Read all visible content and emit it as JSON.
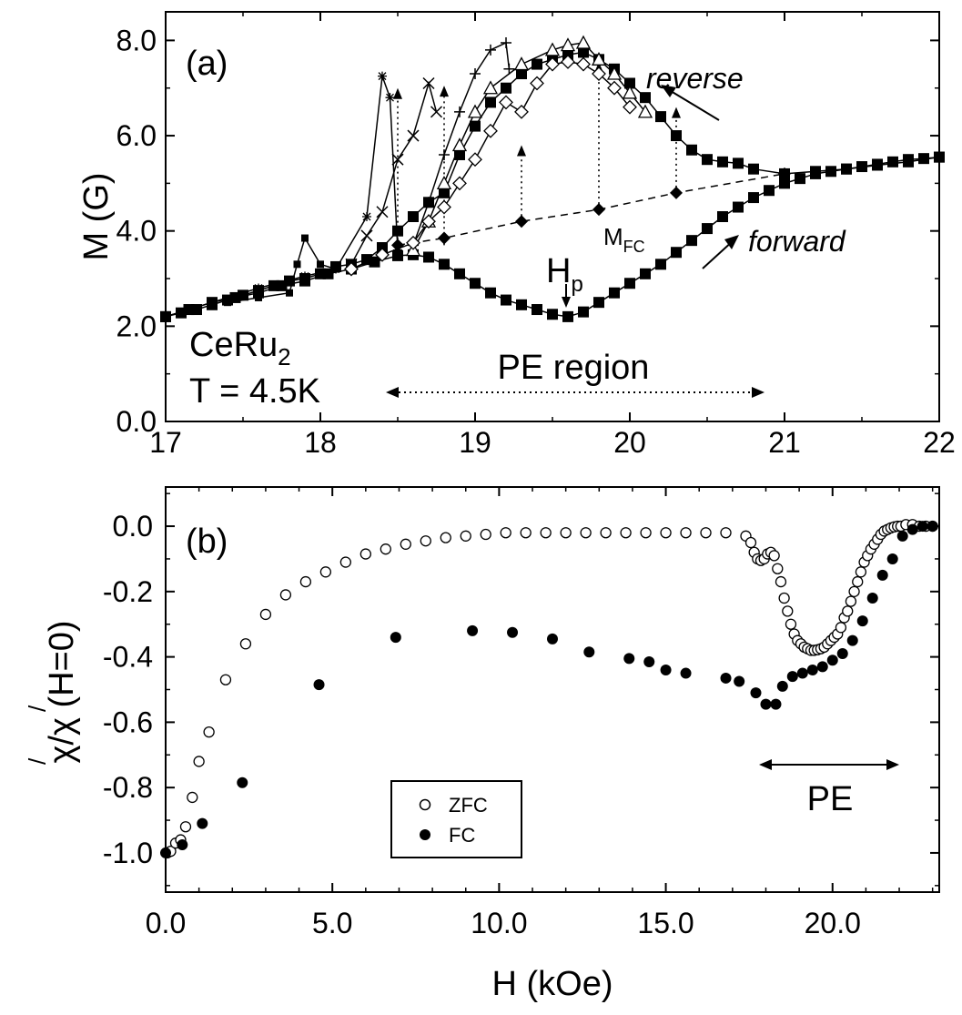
{
  "chart_data": [
    {
      "panel": "(a)",
      "type": "line",
      "xlim": [
        17,
        22
      ],
      "ylim": [
        0,
        8.6
      ],
      "xticks": [
        17,
        18,
        19,
        20,
        21,
        22
      ],
      "xtick_labels": [
        "17",
        "18",
        "19",
        "20",
        "21",
        "22"
      ],
      "yticks": [
        0,
        2,
        4,
        6,
        8
      ],
      "ytick_labels": [
        "0.0",
        "2.0",
        "4.0",
        "6.0",
        "8.0"
      ],
      "xlabel": "",
      "ylabel": "M (G)",
      "annotations": {
        "sample": "CeRu",
        "sample_sub": "2",
        "temperature": "T = 4.5K",
        "region": "PE region",
        "reverse": "reverse",
        "forward": "forward",
        "hp": "H",
        "hp_sub": "p",
        "mfc": "M",
        "mfc_sub": "FC"
      },
      "series": [
        {
          "role": "forward",
          "marker": "square",
          "x": [
            17.0,
            17.15,
            17.3,
            17.45,
            17.6,
            17.75,
            17.9,
            18.05,
            18.2,
            18.35,
            18.5,
            18.6,
            18.7,
            18.8,
            18.9,
            19.0,
            19.1,
            19.2,
            19.3,
            19.4,
            19.5,
            19.6,
            19.7,
            19.8,
            19.9,
            20.0,
            20.1,
            20.2,
            20.3,
            20.4,
            20.5,
            20.6,
            20.7,
            20.8,
            20.9,
            21.0,
            21.1,
            21.2,
            21.3,
            21.4,
            21.5,
            21.6,
            21.7,
            21.8,
            21.9,
            22.0
          ],
          "y": [
            2.2,
            2.35,
            2.5,
            2.6,
            2.7,
            2.85,
            2.95,
            3.1,
            3.2,
            3.35,
            3.48,
            3.5,
            3.45,
            3.3,
            3.1,
            2.9,
            2.7,
            2.55,
            2.45,
            2.35,
            2.25,
            2.2,
            2.3,
            2.5,
            2.7,
            2.9,
            3.1,
            3.3,
            3.55,
            3.8,
            4.05,
            4.3,
            4.5,
            4.7,
            4.85,
            5.0,
            5.1,
            5.2,
            5.25,
            5.3,
            5.35,
            5.4,
            5.45,
            5.5,
            5.52,
            5.55
          ]
        },
        {
          "role": "reverse",
          "marker": "square",
          "x": [
            22.0,
            21.8,
            21.6,
            21.4,
            21.2,
            21.0,
            20.8,
            20.7,
            20.6,
            20.5,
            20.4,
            20.3,
            20.2,
            20.1,
            20.0,
            19.9,
            19.8,
            19.7,
            19.6,
            19.5,
            19.4,
            19.3,
            19.2,
            19.1,
            19.0,
            18.9,
            18.8,
            18.7,
            18.6,
            18.5,
            18.4,
            18.3,
            18.2,
            18.1,
            18.0,
            17.9,
            17.8,
            17.7,
            17.6,
            17.5,
            17.4,
            17.3,
            17.2,
            17.1,
            17.0
          ],
          "y": [
            5.55,
            5.45,
            5.38,
            5.3,
            5.25,
            5.2,
            5.3,
            5.42,
            5.45,
            5.5,
            5.7,
            6.0,
            6.4,
            6.8,
            7.1,
            7.4,
            7.6,
            7.75,
            7.7,
            7.6,
            7.5,
            7.3,
            7.0,
            6.7,
            6.2,
            5.6,
            4.8,
            4.6,
            4.3,
            4.0,
            3.65,
            3.4,
            3.3,
            3.25,
            3.1,
            3.0,
            2.95,
            2.85,
            2.75,
            2.65,
            2.55,
            2.45,
            2.35,
            2.28,
            2.2
          ]
        },
        {
          "role": "M_FC",
          "marker": "diamond",
          "x": [
            18.5,
            18.8,
            19.3,
            19.8,
            20.3,
            21.0
          ],
          "y": [
            3.7,
            3.85,
            4.2,
            4.45,
            4.8,
            5.2
          ]
        },
        {
          "role": "minor-loop",
          "marker": "square-small",
          "x": [
            17.4,
            17.6,
            17.8,
            17.85,
            17.9,
            18.0,
            18.1
          ],
          "y": [
            2.5,
            2.6,
            2.7,
            3.3,
            3.85,
            3.3,
            3.2
          ]
        },
        {
          "role": "minor-loop",
          "marker": "asterisk",
          "x": [
            17.0,
            17.3,
            17.6,
            17.9,
            18.1,
            18.3,
            18.4,
            18.45,
            18.5
          ],
          "y": [
            2.2,
            2.5,
            2.8,
            3.05,
            3.2,
            4.3,
            7.25,
            6.8,
            3.6
          ]
        },
        {
          "role": "minor-loop",
          "marker": "x",
          "x": [
            18.2,
            18.3,
            18.4,
            18.5,
            18.6,
            18.7,
            18.75
          ],
          "y": [
            3.3,
            3.9,
            4.4,
            5.5,
            6.0,
            7.1,
            6.5
          ]
        },
        {
          "role": "minor-loop",
          "marker": "plus",
          "x": [
            18.6,
            18.7,
            18.8,
            18.9,
            19.0,
            19.1,
            19.2,
            19.22
          ],
          "y": [
            3.7,
            4.6,
            5.6,
            6.5,
            7.3,
            7.8,
            7.95,
            7.4
          ]
        },
        {
          "role": "minor-loop",
          "marker": "triangle",
          "x": [
            18.6,
            18.7,
            18.8,
            18.9,
            19.0,
            19.1,
            19.3,
            19.5,
            19.6,
            19.7,
            19.8,
            19.9,
            20.0,
            20.1
          ],
          "y": [
            3.6,
            4.2,
            5.0,
            5.8,
            6.5,
            7.0,
            7.5,
            7.8,
            7.9,
            7.95,
            7.6,
            7.3,
            6.9,
            6.5
          ]
        },
        {
          "role": "minor-loop",
          "marker": "diamond-open",
          "x": [
            18.2,
            18.4,
            18.6,
            18.7,
            18.8,
            18.9,
            19.0,
            19.1,
            19.2,
            19.3,
            19.4,
            19.5,
            19.6,
            19.7,
            19.8,
            19.9,
            20.0
          ],
          "y": [
            3.2,
            3.5,
            3.75,
            4.2,
            4.5,
            5.0,
            5.5,
            6.1,
            6.7,
            6.5,
            7.1,
            7.5,
            7.55,
            7.5,
            7.3,
            7.0,
            6.6
          ]
        }
      ],
      "arrows": [
        {
          "x": 18.5,
          "y1": 3.6,
          "y2": 7.0,
          "style": "dotted"
        },
        {
          "x": 18.8,
          "y1": 3.7,
          "y2": 7.05,
          "style": "dotted"
        },
        {
          "x": 19.3,
          "y1": 4.2,
          "y2": 5.8,
          "style": "dotted"
        },
        {
          "x": 19.8,
          "y1": 4.45,
          "y2": 7.55,
          "style": "dotted"
        },
        {
          "x": 20.3,
          "y1": 4.8,
          "y2": 6.6,
          "style": "dotted"
        }
      ]
    },
    {
      "panel": "(b)",
      "type": "scatter",
      "xlim": [
        0,
        23.2
      ],
      "ylim": [
        -1.12,
        0.12
      ],
      "xticks": [
        0,
        5,
        10,
        15,
        20
      ],
      "xtick_labels": [
        "0.0",
        "5.0",
        "10.0",
        "15.0",
        "20.0"
      ],
      "yticks": [
        0,
        -0.2,
        -0.4,
        -0.6,
        -0.8,
        -1.0
      ],
      "ytick_labels": [
        "0.0",
        "-0.2",
        "-0.4",
        "-0.6",
        "-0.8",
        "-1.0"
      ],
      "xlabel": "H (kOe)",
      "ylabel": "χ/χ (H=0)",
      "ylabel_prime": "/",
      "annotations": {
        "pe": "PE"
      },
      "legend": {
        "position": "lower-center-left",
        "entries": [
          "ZFC",
          "FC"
        ]
      },
      "series": [
        {
          "name": "ZFC",
          "marker": "open-circle",
          "x": [
            0.05,
            0.15,
            0.3,
            0.45,
            0.6,
            0.8,
            1.0,
            1.3,
            1.8,
            2.4,
            3.0,
            3.6,
            4.2,
            4.8,
            5.4,
            6.0,
            6.6,
            7.2,
            7.8,
            8.4,
            9.0,
            9.6,
            10.2,
            10.8,
            11.4,
            12.0,
            12.6,
            13.2,
            13.8,
            14.4,
            15.0,
            15.6,
            16.2,
            16.8,
            17.4,
            17.55,
            17.65,
            17.75,
            17.85,
            17.95,
            18.05,
            18.15,
            18.25,
            18.35,
            18.45,
            18.55,
            18.65,
            18.75,
            18.85,
            18.95,
            19.05,
            19.15,
            19.25,
            19.35,
            19.45,
            19.55,
            19.65,
            19.75,
            19.85,
            19.95,
            20.05,
            20.15,
            20.25,
            20.35,
            20.45,
            20.55,
            20.65,
            20.75,
            20.85,
            20.95,
            21.05,
            21.15,
            21.25,
            21.35,
            21.45,
            21.55,
            21.65,
            21.75,
            21.85,
            21.95,
            22.05,
            22.2,
            22.4,
            22.6,
            22.8,
            23.0
          ],
          "y": [
            -1.0,
            -0.995,
            -0.97,
            -0.96,
            -0.92,
            -0.83,
            -0.72,
            -0.63,
            -0.47,
            -0.36,
            -0.27,
            -0.21,
            -0.17,
            -0.14,
            -0.11,
            -0.085,
            -0.07,
            -0.055,
            -0.045,
            -0.035,
            -0.03,
            -0.025,
            -0.02,
            -0.02,
            -0.02,
            -0.02,
            -0.02,
            -0.02,
            -0.02,
            -0.02,
            -0.02,
            -0.02,
            -0.02,
            -0.02,
            -0.03,
            -0.05,
            -0.08,
            -0.1,
            -0.105,
            -0.1,
            -0.085,
            -0.08,
            -0.09,
            -0.13,
            -0.17,
            -0.22,
            -0.26,
            -0.3,
            -0.33,
            -0.35,
            -0.36,
            -0.37,
            -0.375,
            -0.38,
            -0.38,
            -0.378,
            -0.375,
            -0.37,
            -0.36,
            -0.35,
            -0.34,
            -0.33,
            -0.31,
            -0.28,
            -0.26,
            -0.23,
            -0.2,
            -0.17,
            -0.14,
            -0.11,
            -0.09,
            -0.07,
            -0.055,
            -0.04,
            -0.025,
            -0.015,
            -0.01,
            -0.005,
            -0.002,
            0.0,
            0.0,
            0.005,
            0.005,
            0.0,
            0.0,
            0.0
          ]
        },
        {
          "name": "FC",
          "marker": "filled-circle",
          "x": [
            0.0,
            0.5,
            1.1,
            2.3,
            4.6,
            6.9,
            9.2,
            10.4,
            11.6,
            12.7,
            13.9,
            14.5,
            15.0,
            15.6,
            16.8,
            17.2,
            17.7,
            18.0,
            18.3,
            18.5,
            18.8,
            19.1,
            19.4,
            19.7,
            20.0,
            20.3,
            20.6,
            20.9,
            21.2,
            21.5,
            21.8,
            22.1,
            22.4,
            22.7,
            23.0
          ],
          "y": [
            -1.0,
            -0.975,
            -0.91,
            -0.785,
            -0.485,
            -0.34,
            -0.32,
            -0.325,
            -0.345,
            -0.385,
            -0.405,
            -0.415,
            -0.44,
            -0.45,
            -0.465,
            -0.475,
            -0.51,
            -0.545,
            -0.545,
            -0.49,
            -0.46,
            -0.45,
            -0.44,
            -0.43,
            -0.41,
            -0.39,
            -0.35,
            -0.29,
            -0.22,
            -0.15,
            -0.1,
            -0.03,
            -0.01,
            0.0,
            0.0
          ]
        }
      ]
    }
  ]
}
